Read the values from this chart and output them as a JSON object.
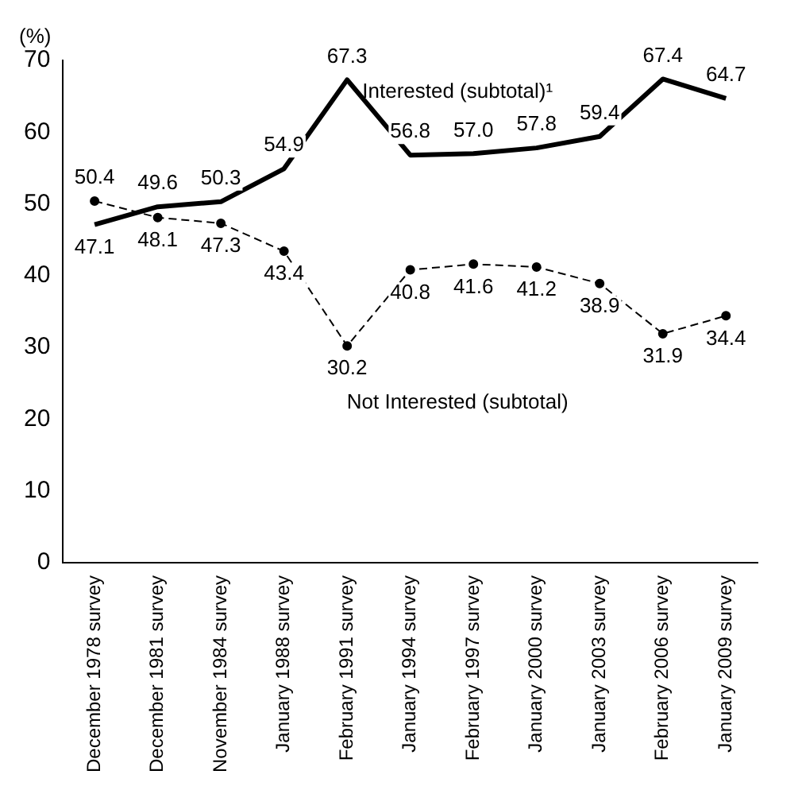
{
  "chart_data": {
    "type": "line",
    "ylabel": "(%)",
    "categories": [
      "December 1978 survey",
      "December 1981 survey",
      "November 1984 survey",
      "January 1988 survey",
      "February 1991 survey",
      "January 1994 survey",
      "February 1997 survey",
      "January 2000 survey",
      "January 2003 survey",
      "February 2006 survey",
      "January 2009 survey"
    ],
    "series": [
      {
        "name": "Interested (subtotal)¹",
        "color": "#000000",
        "marker": "none",
        "line_style": "solid",
        "values": [
          47.1,
          49.6,
          50.3,
          54.9,
          67.3,
          56.8,
          57.0,
          57.8,
          59.4,
          67.4,
          64.7
        ],
        "value_labels": [
          "47.1",
          "49.6",
          "50.3",
          "54.9",
          "67.3",
          "56.8",
          "57.0",
          "57.8",
          "59.4",
          "67.4",
          "64.7"
        ]
      },
      {
        "name": "Not Interested (subtotal)",
        "color": "#000000",
        "marker": "circle",
        "line_style": "dashed",
        "values": [
          50.4,
          48.1,
          47.3,
          43.4,
          30.2,
          40.8,
          41.6,
          41.2,
          38.9,
          31.9,
          34.4
        ],
        "value_labels": [
          "50.4",
          "48.1",
          "47.3",
          "43.4",
          "30.2",
          "40.8",
          "41.6",
          "41.2",
          "38.9",
          "31.9",
          "34.4"
        ]
      }
    ],
    "ylim": [
      0,
      70
    ],
    "yticks": [
      0,
      10,
      20,
      30,
      40,
      50,
      60,
      70
    ],
    "grid": false,
    "legend": false
  }
}
